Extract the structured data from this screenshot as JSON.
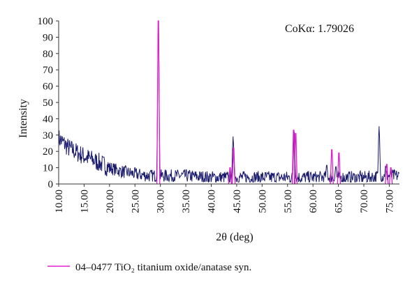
{
  "chart_data": {
    "type": "line",
    "title": "",
    "xlabel": "2θ (deg)",
    "ylabel": "Intensity",
    "annotation": "CoKα: 1.79026",
    "xlim": [
      10,
      77
    ],
    "ylim": [
      0,
      100
    ],
    "x_ticks": [
      "10.00",
      "15.00",
      "20.00",
      "25.00",
      "30.00",
      "35.00",
      "40.00",
      "45.00",
      "50.00",
      "55.00",
      "60.00",
      "65.00",
      "70.00",
      "75.00"
    ],
    "y_ticks": [
      "0",
      "10",
      "20",
      "30",
      "40",
      "50",
      "60",
      "70",
      "80",
      "90",
      "100"
    ],
    "grid": false,
    "legend_position": "bottom",
    "series": [
      {
        "name": "",
        "color": "#1a1a6e",
        "background": [
          [
            10,
            28
          ],
          [
            12,
            22
          ],
          [
            15,
            17
          ],
          [
            18,
            13
          ],
          [
            20,
            10
          ],
          [
            22,
            8
          ],
          [
            25,
            6
          ],
          [
            28,
            5
          ],
          [
            30,
            5
          ],
          [
            35,
            5
          ],
          [
            40,
            4
          ],
          [
            45,
            4
          ],
          [
            50,
            4
          ],
          [
            55,
            4
          ],
          [
            60,
            4
          ],
          [
            65,
            4
          ],
          [
            70,
            4
          ],
          [
            75,
            5
          ],
          [
            77,
            5
          ]
        ],
        "noise": 4,
        "peaks": [
          {
            "x": 29.6,
            "y": 100
          },
          {
            "x": 44.3,
            "y": 28
          },
          {
            "x": 56.3,
            "y": 32
          },
          {
            "x": 62.7,
            "y": 11
          },
          {
            "x": 64.5,
            "y": 10
          },
          {
            "x": 73.0,
            "y": 34
          },
          {
            "x": 74.3,
            "y": 10
          }
        ]
      },
      {
        "name": "04–0477 TiO₂ titanium oxide/anatase syn.",
        "color": "#e020d0",
        "sticks": [
          {
            "x": 29.6,
            "y": 100
          },
          {
            "x": 43.7,
            "y": 10
          },
          {
            "x": 44.4,
            "y": 22
          },
          {
            "x": 56.2,
            "y": 33
          },
          {
            "x": 56.6,
            "y": 31
          },
          {
            "x": 63.7,
            "y": 21
          },
          {
            "x": 65.1,
            "y": 19
          },
          {
            "x": 74.5,
            "y": 12
          },
          {
            "x": 75.3,
            "y": 10
          }
        ]
      }
    ]
  }
}
